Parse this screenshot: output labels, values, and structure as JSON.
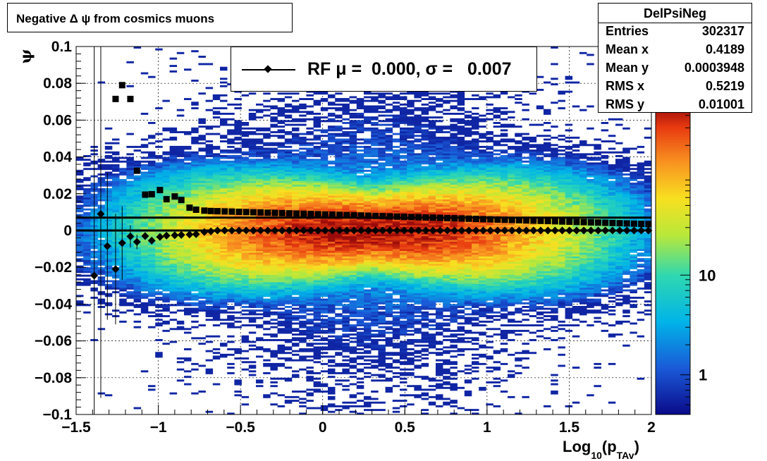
{
  "title": "Negative Δ ψ from cosmics muons",
  "legend": {
    "text": "RF μ =  0.000, σ =   0.007"
  },
  "stats": {
    "name": "DelPsiNeg",
    "rows": [
      {
        "key": "Entries",
        "value": "302317"
      },
      {
        "key": "Mean x",
        "value": "0.4189"
      },
      {
        "key": "Mean y",
        "value": "0.0003948"
      },
      {
        "key": "RMS x",
        "value": "0.5219"
      },
      {
        "key": "RMS y",
        "value": "0.01001"
      }
    ]
  },
  "chart_data": {
    "type": "heatmap",
    "title": "Negative Δ ψ from cosmics muons",
    "xlabel": "Log10(pTAv)",
    "ylabel": "ψ",
    "xlim": [
      -1.5,
      2
    ],
    "ylim": [
      -0.1,
      0.1
    ],
    "x_ticks": [
      "−1.5",
      "−1",
      "−0.5",
      "0",
      "0.5",
      "1",
      "1.5",
      "2"
    ],
    "y_ticks": [
      "−0.1",
      "−0.08",
      "−0.06",
      "−0.04",
      "−0.02",
      "0",
      "0.02",
      "0.04",
      "0.06",
      "0.08",
      "0.1"
    ],
    "colorbar": {
      "scale": "log",
      "ticks": [
        "1",
        "10"
      ]
    },
    "grid": true,
    "density_model": {
      "x_peak": 0.3,
      "x_width": 0.55,
      "y_sigma": 0.007,
      "max_counts": 400
    },
    "mean_series": {
      "name": "mean",
      "marker": "diamond",
      "points": [
        [
          -1.39,
          -0.0245,
          0.13
        ],
        [
          -1.35,
          0.009,
          0.1
        ],
        [
          -1.31,
          -0.0085,
          0.04
        ],
        [
          -1.26,
          -0.021,
          0.03
        ],
        [
          -1.22,
          -0.0068,
          0.02
        ],
        [
          -1.17,
          -0.0032,
          0.006
        ],
        [
          -1.13,
          -0.0062,
          0.004
        ],
        [
          -1.08,
          -0.003,
          0.002
        ],
        [
          -1.04,
          -0.0055,
          0.002
        ],
        [
          -0.99,
          -0.0035,
          0.002
        ],
        [
          -0.95,
          -0.0028,
          0.002
        ],
        [
          -0.9,
          -0.0026,
          0.001
        ],
        [
          -0.86,
          -0.0024,
          0.001
        ],
        [
          -0.81,
          -0.0022,
          0.001
        ],
        [
          -0.77,
          -0.002,
          0.001
        ],
        [
          -0.72,
          -0.0008,
          0.001
        ],
        [
          -0.68,
          -0.0005,
          0.001
        ]
      ],
      "dense_from": -0.64,
      "dense_to": 1.98,
      "dense_step": 0.0437,
      "dense_value": 0.0
    },
    "rms_series": {
      "name": "rms",
      "marker": "square",
      "points": [
        [
          -1.26,
          0.0715,
          0.0
        ],
        [
          -1.22,
          0.079,
          0.0
        ],
        [
          -1.17,
          0.0715,
          0.0
        ],
        [
          -1.13,
          0.0325,
          0.0
        ],
        [
          -1.08,
          0.0195,
          0.0
        ],
        [
          -1.04,
          0.0197,
          0.0
        ],
        [
          -0.99,
          0.022,
          0.0
        ],
        [
          -0.95,
          0.017,
          0.0
        ],
        [
          -0.9,
          0.0185,
          0.0
        ],
        [
          -0.86,
          0.0166,
          0.0
        ],
        [
          -0.81,
          0.0124,
          0.0
        ],
        [
          -0.77,
          0.0113,
          0.0
        ],
        [
          -0.72,
          0.0108,
          0.0
        ],
        [
          -0.68,
          0.0106,
          0.0
        ]
      ],
      "dense_from": -0.64,
      "dense_to": 1.98,
      "dense_step": 0.0437,
      "dense_start": 0.0105,
      "dense_end": 0.0035
    },
    "fit_lines": [
      {
        "name": "mean fit",
        "value": 0.0
      },
      {
        "name": "sigma",
        "value": 0.007
      }
    ]
  }
}
